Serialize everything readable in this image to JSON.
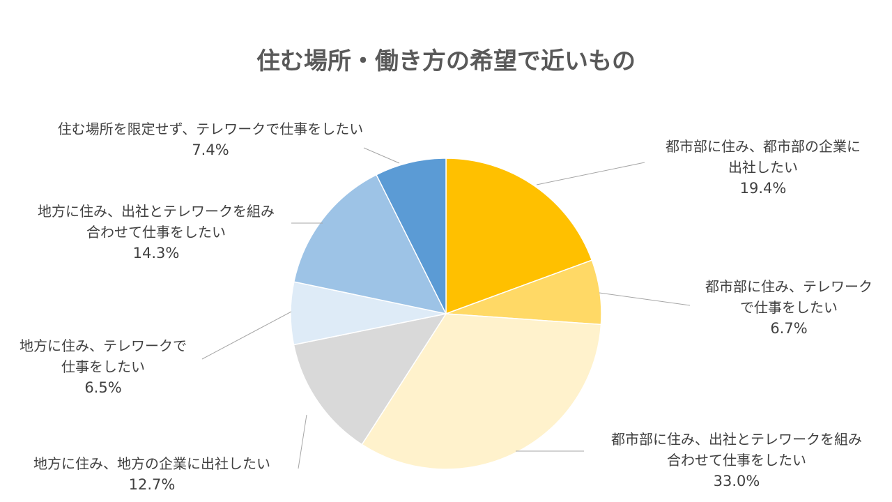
{
  "chart_data": {
    "type": "pie",
    "title": "住む場所・働き方の希望で近いもの",
    "slices": [
      {
        "label_lines": [
          "都市部に住み、都市部の企業に",
          "出社したい"
        ],
        "value": 19.4,
        "value_label": "19.4%",
        "color": "#FFC000"
      },
      {
        "label_lines": [
          "都市部に住み、テレワーク",
          "で仕事をしたい"
        ],
        "value": 6.7,
        "value_label": "6.7%",
        "color": "#FFD966"
      },
      {
        "label_lines": [
          "都市部に住み、出社とテレワークを組み",
          "合わせて仕事をしたい"
        ],
        "value": 33.0,
        "value_label": "33.0%",
        "color": "#FFF2CC"
      },
      {
        "label_lines": [
          "地方に住み、地方の企業に出社したい"
        ],
        "value": 12.7,
        "value_label": "12.7%",
        "color": "#D9D9D9"
      },
      {
        "label_lines": [
          "地方に住み、テレワークで",
          "仕事をしたい"
        ],
        "value": 6.5,
        "value_label": "6.5%",
        "color": "#DEEBF7"
      },
      {
        "label_lines": [
          "地方に住み、出社とテレワークを組み",
          "合わせて仕事をしたい"
        ],
        "value": 14.3,
        "value_label": "14.3%",
        "color": "#9DC3E6"
      },
      {
        "label_lines": [
          "住む場所を限定せず、テレワークで仕事をしたい"
        ],
        "value": 7.4,
        "value_label": "7.4%",
        "color": "#5B9BD5"
      }
    ]
  }
}
